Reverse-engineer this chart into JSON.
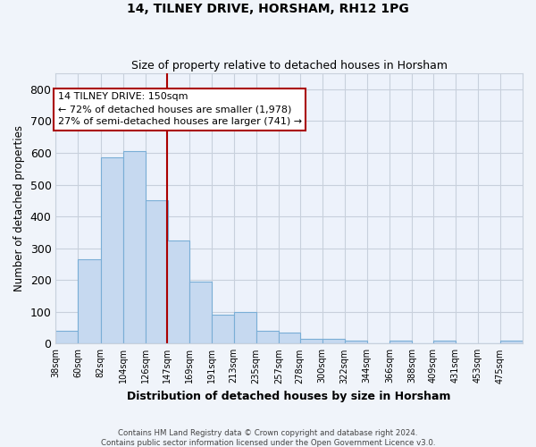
{
  "title_line1": "14, TILNEY DRIVE, HORSHAM, RH12 1PG",
  "title_line2": "Size of property relative to detached houses in Horsham",
  "xlabel": "Distribution of detached houses by size in Horsham",
  "ylabel": "Number of detached properties",
  "annotation_line1": "14 TILNEY DRIVE: 150sqm",
  "annotation_line2": "← 72% of detached houses are smaller (1,978)",
  "annotation_line3": "27% of semi-detached houses are larger (741) →",
  "bar_left_edges": [
    38,
    60,
    82,
    104,
    126,
    147,
    169,
    191,
    213,
    235,
    257,
    278,
    300,
    322,
    344,
    366,
    388,
    409,
    431,
    453,
    475
  ],
  "bar_widths": [
    22,
    22,
    22,
    22,
    22,
    22,
    22,
    22,
    22,
    22,
    21,
    22,
    22,
    22,
    22,
    22,
    21,
    22,
    22,
    22,
    22
  ],
  "bar_heights": [
    40,
    265,
    585,
    605,
    450,
    325,
    195,
    90,
    100,
    40,
    35,
    15,
    15,
    10,
    0,
    8,
    0,
    8,
    0,
    0,
    8
  ],
  "bar_facecolor": "#c6d9f0",
  "bar_edgecolor": "#7aaed6",
  "vline_color": "#aa0000",
  "vline_x": 147,
  "annotation_box_edgecolor": "#aa0000",
  "annotation_box_facecolor": "#ffffff",
  "ylim": [
    0,
    850
  ],
  "yticks": [
    0,
    100,
    200,
    300,
    400,
    500,
    600,
    700,
    800
  ],
  "xlim_left": 38,
  "xlim_right": 497,
  "background_color": "#f0f4fa",
  "plot_background": "#edf2fb",
  "grid_color": "#c8d0dc",
  "footnote_line1": "Contains HM Land Registry data © Crown copyright and database right 2024.",
  "footnote_line2": "Contains public sector information licensed under the Open Government Licence v3.0."
}
